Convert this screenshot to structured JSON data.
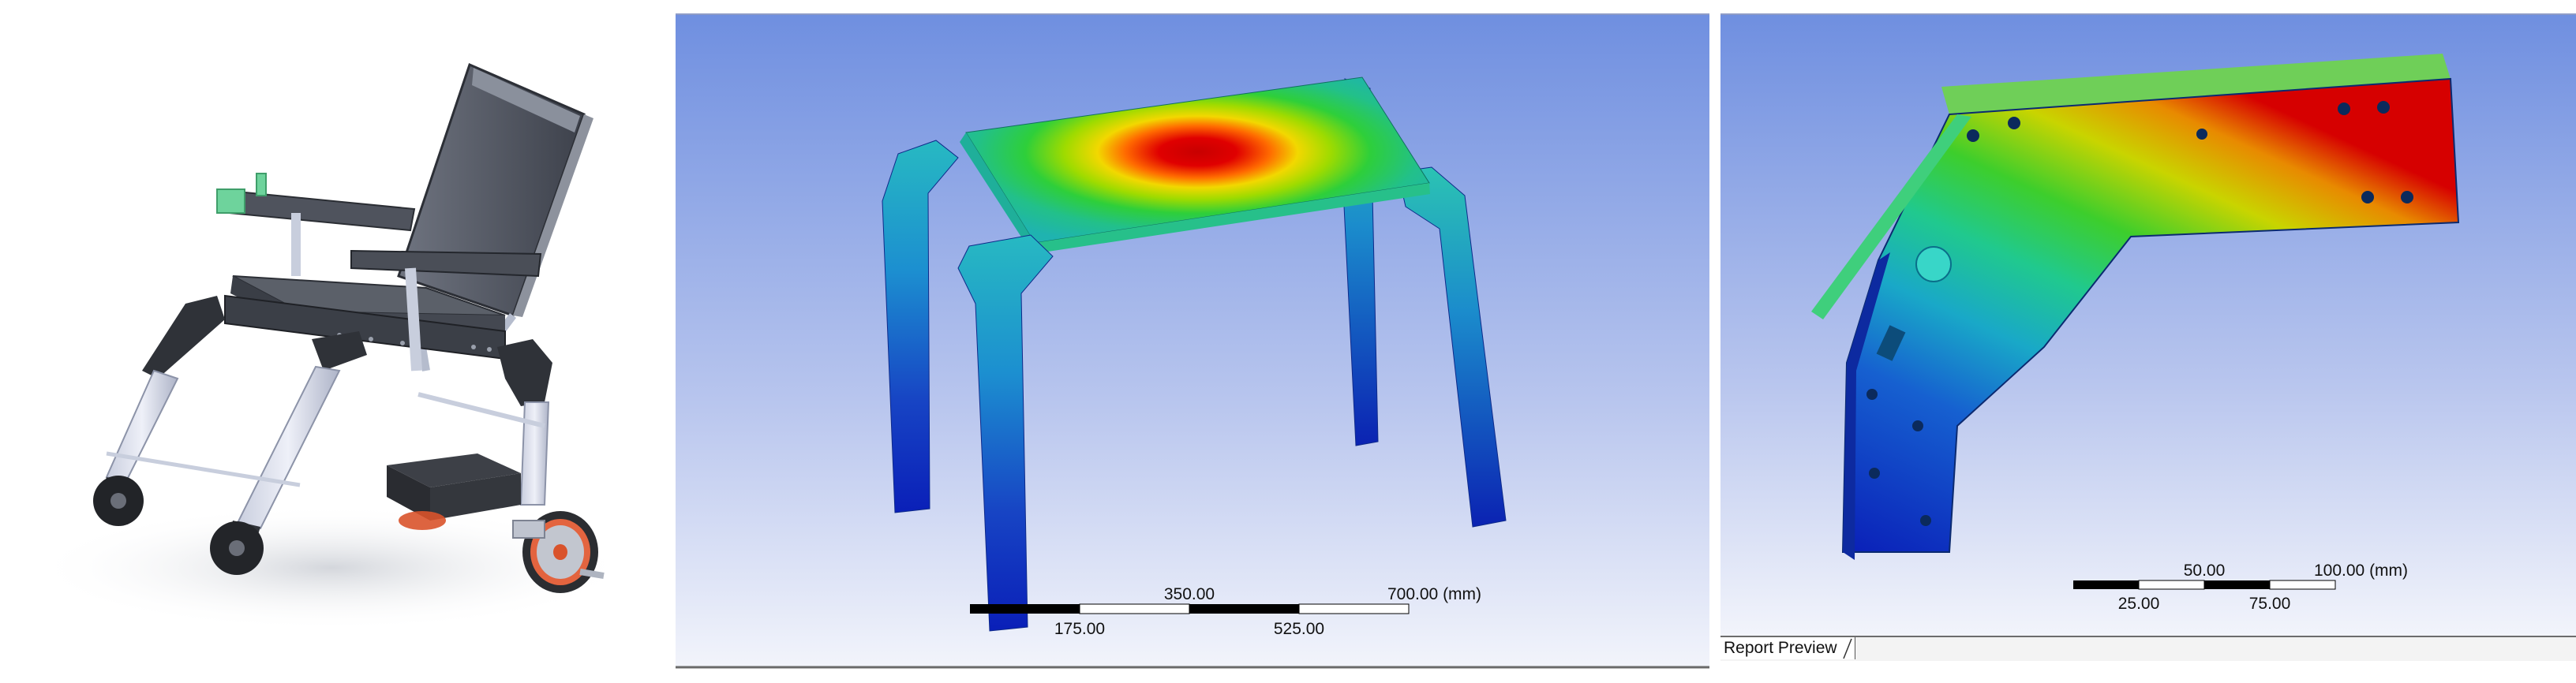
{
  "fea_frame": {
    "scale_top_labels": [
      "350.00",
      "700.00 (mm)"
    ],
    "scale_bottom_labels": [
      "175.00",
      "525.00"
    ]
  },
  "fea_bracket": {
    "scale_top_labels": [
      "50.00",
      "100.00 (mm)"
    ],
    "scale_bottom_labels": [
      "25.00",
      "75.00"
    ],
    "tab_label": "Report Preview"
  },
  "colors": {
    "viewport_top": "#6f8fe0",
    "viewport_bottom": "#f2f4fb",
    "stress_max": "#d40000",
    "stress_min": "#0a1fb8"
  }
}
